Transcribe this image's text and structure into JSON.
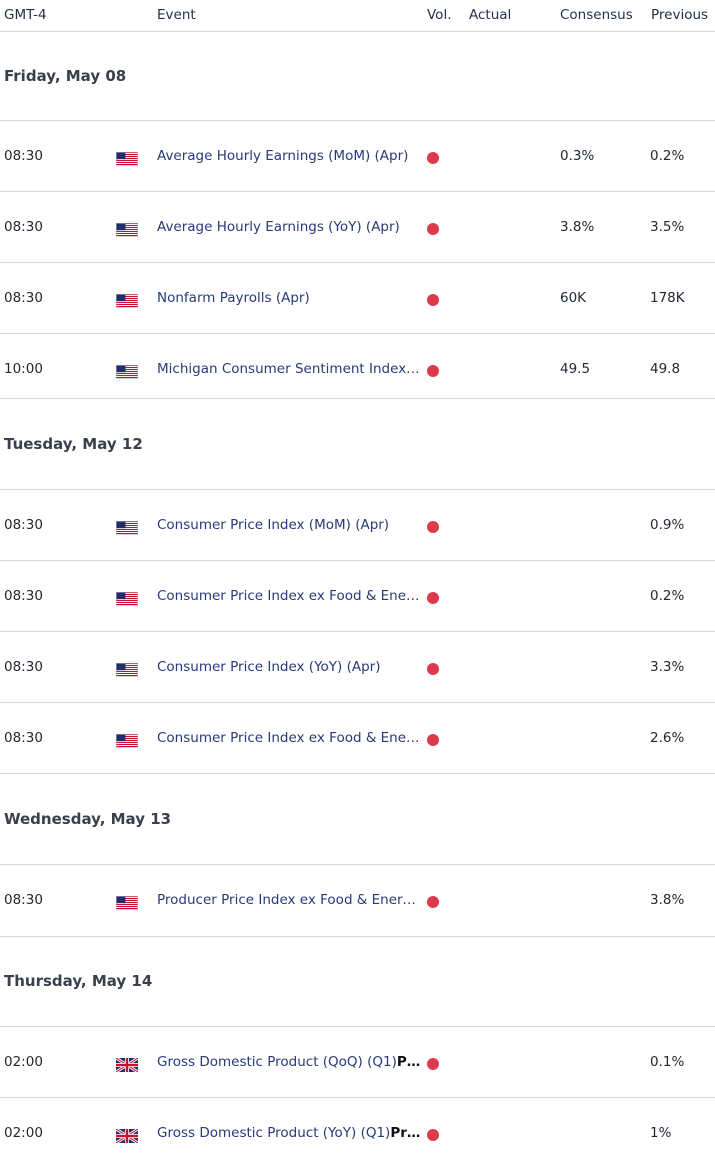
{
  "header": {
    "timezone": "GMT-4",
    "event": "Event",
    "vol": "Vol.",
    "actual": "Actual",
    "consensus": "Consensus",
    "previous": "Previous"
  },
  "colors": {
    "volatility_high": "#dc3b4b",
    "event_link": "#283a78"
  },
  "days": [
    {
      "label": "Friday, May 08",
      "events": [
        {
          "time": "08:30",
          "flag": "us-flag-icon",
          "name": "Average Hourly Earnings (MoM) (Apr)",
          "name_bold": "",
          "consensus": "0.3%",
          "previous": "0.2%"
        },
        {
          "time": "08:30",
          "flag": "us-flag-icon",
          "name": "Average Hourly Earnings (YoY) (Apr)",
          "name_bold": "",
          "consensus": "3.8%",
          "previous": "3.5%"
        },
        {
          "time": "08:30",
          "flag": "us-flag-icon",
          "name": "Nonfarm Payrolls (Apr)",
          "name_bold": "",
          "consensus": "60K",
          "previous": "178K"
        },
        {
          "time": "10:00",
          "flag": "us-flag-icon",
          "name": "Michigan Consumer Sentiment Index…",
          "name_bold": "",
          "consensus": "49.5",
          "previous": "49.8"
        }
      ]
    },
    {
      "label": "Tuesday, May 12",
      "events": [
        {
          "time": "08:30",
          "flag": "us-flag-icon",
          "name": "Consumer Price Index (MoM) (Apr)",
          "name_bold": "",
          "consensus": "",
          "previous": "0.9%"
        },
        {
          "time": "08:30",
          "flag": "us-flag-icon",
          "name": "Consumer Price Index ex Food & Ener…",
          "name_bold": "",
          "consensus": "",
          "previous": "0.2%"
        },
        {
          "time": "08:30",
          "flag": "us-flag-icon",
          "name": "Consumer Price Index (YoY) (Apr)",
          "name_bold": "",
          "consensus": "",
          "previous": "3.3%"
        },
        {
          "time": "08:30",
          "flag": "us-flag-icon",
          "name": "Consumer Price Index ex Food & Ener…",
          "name_bold": "",
          "consensus": "",
          "previous": "2.6%"
        }
      ]
    },
    {
      "label": "Wednesday, May 13",
      "events": [
        {
          "time": "08:30",
          "flag": "us-flag-icon",
          "name": "Producer Price Index ex Food & Energ…",
          "name_bold": "",
          "consensus": "",
          "previous": "3.8%"
        }
      ]
    },
    {
      "label": "Thursday, May 14",
      "events": [
        {
          "time": "02:00",
          "flag": "uk-flag-icon",
          "name": "Gross Domestic Product (QoQ) (Q1)",
          "name_bold": "P…",
          "consensus": "",
          "previous": "0.1%"
        },
        {
          "time": "02:00",
          "flag": "uk-flag-icon",
          "name": "Gross Domestic Product (YoY) (Q1)",
          "name_bold": "Pr…",
          "consensus": "",
          "previous": "1%"
        }
      ]
    }
  ]
}
